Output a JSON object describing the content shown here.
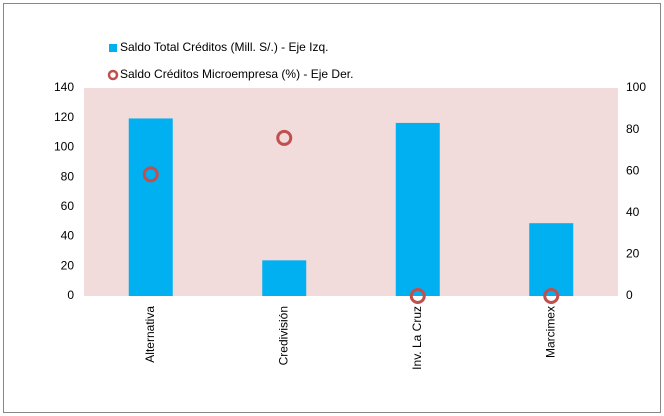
{
  "chart_data": {
    "type": "bar",
    "categories": [
      "Alternativa",
      "Credivisión",
      "Inv. La Cruz",
      "Marcimex"
    ],
    "series": [
      {
        "name": "Saldo Total  Créditos (Mill. S/.) - Eje Izq.",
        "type": "bar",
        "color": "#00b0f0",
        "values": [
          119.5,
          24,
          116.5,
          49
        ]
      },
      {
        "name": "Saldo Créditos Microempresa (%) - Eje Der.",
        "type": "scatter",
        "axis": "y2",
        "color": "#c0504d",
        "values": [
          58.5,
          76,
          0,
          0
        ]
      }
    ],
    "ylim": [
      0,
      140
    ],
    "yticks": [
      0,
      20,
      40,
      60,
      80,
      100,
      120,
      140
    ],
    "y2lim": [
      0,
      100
    ],
    "y2ticks": [
      0,
      20,
      40,
      60,
      80,
      100
    ],
    "plot_background": "#f2dcdb"
  }
}
